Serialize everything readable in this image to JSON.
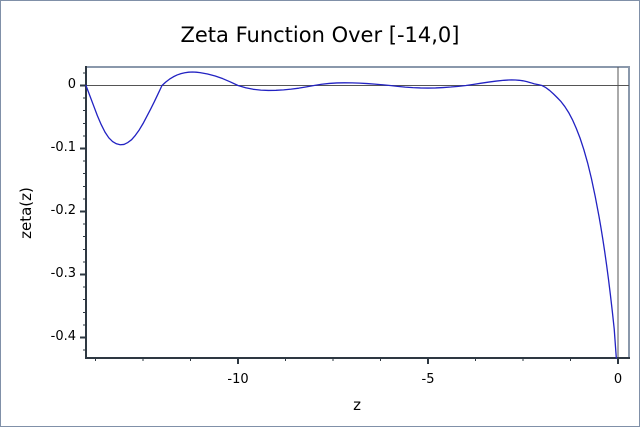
{
  "figure": {
    "border_color": "#8090a8",
    "background": "#ffffff"
  },
  "chart_data": {
    "type": "line",
    "title": "Zeta Function Over [-14,0]",
    "xlabel": "z",
    "ylabel": "zeta(z)",
    "x_range": [
      -14,
      0.289
    ],
    "y_range": [
      -0.4325,
      0.0294
    ],
    "grid": false,
    "legend": "none",
    "axis_cross_lines": {
      "horizontal_at_y": 0,
      "vertical_at_x": 0
    },
    "x_major_ticks": [
      {
        "value": -10,
        "label": "-10"
      },
      {
        "value": -5,
        "label": "-5"
      },
      {
        "value": 0,
        "label": "0"
      }
    ],
    "x_minor_ticks": [
      -13.75,
      -12.5,
      -11.25,
      -8.75,
      -7.5,
      -6.25,
      -3.75,
      -2.5,
      -1.25
    ],
    "y_major_ticks": [
      {
        "value": 0,
        "label": "0"
      },
      {
        "value": -0.1,
        "label": "-0.1"
      },
      {
        "value": -0.2,
        "label": "-0.2"
      },
      {
        "value": -0.3,
        "label": "-0.3"
      },
      {
        "value": -0.4,
        "label": "-0.4"
      }
    ],
    "y_minor_ticks": [
      0.02,
      -0.02,
      -0.04,
      -0.06,
      -0.08,
      -0.12,
      -0.14,
      -0.16,
      -0.18,
      -0.22,
      -0.24,
      -0.26,
      -0.28,
      -0.32,
      -0.34,
      -0.36,
      -0.38,
      -0.42
    ],
    "colors": {
      "curve": "#2222c2",
      "frame": "#8a98ab",
      "axis_spine": "#2e3842",
      "zero_line": "#555555",
      "text": "#000000"
    },
    "series": [
      {
        "name": "zeta(z)",
        "color": "#2222c2",
        "points": [
          [
            -14.0,
            0.0
          ],
          [
            -13.9,
            -0.016
          ],
          [
            -13.8,
            -0.032
          ],
          [
            -13.7,
            -0.048
          ],
          [
            -13.6,
            -0.062
          ],
          [
            -13.5,
            -0.074
          ],
          [
            -13.4,
            -0.083
          ],
          [
            -13.3,
            -0.089
          ],
          [
            -13.2,
            -0.0925
          ],
          [
            -13.1,
            -0.094
          ],
          [
            -13.0,
            -0.0935
          ],
          [
            -12.9,
            -0.0905
          ],
          [
            -12.8,
            -0.086
          ],
          [
            -12.7,
            -0.079
          ],
          [
            -12.6,
            -0.0705
          ],
          [
            -12.5,
            -0.0605
          ],
          [
            -12.4,
            -0.049
          ],
          [
            -12.3,
            -0.0375
          ],
          [
            -12.2,
            -0.0255
          ],
          [
            -12.1,
            -0.0128
          ],
          [
            -12.0,
            0.0
          ],
          [
            -11.9,
            0.0056
          ],
          [
            -11.8,
            0.0102
          ],
          [
            -11.7,
            0.0139
          ],
          [
            -11.6,
            0.0168
          ],
          [
            -11.5,
            0.0189
          ],
          [
            -11.4,
            0.0203
          ],
          [
            -11.3,
            0.0212
          ],
          [
            -11.2,
            0.0215
          ],
          [
            -11.1,
            0.0212
          ],
          [
            -11.0,
            0.0205
          ],
          [
            -10.8,
            0.0183
          ],
          [
            -10.6,
            0.0151
          ],
          [
            -10.4,
            0.0109
          ],
          [
            -10.2,
            0.0057
          ],
          [
            -10.0,
            0.0
          ],
          [
            -9.8,
            -0.0035
          ],
          [
            -9.6,
            -0.006
          ],
          [
            -9.4,
            -0.0073
          ],
          [
            -9.2,
            -0.0078
          ],
          [
            -9.0,
            -0.0076
          ],
          [
            -8.8,
            -0.0069
          ],
          [
            -8.6,
            -0.0057
          ],
          [
            -8.4,
            -0.0042
          ],
          [
            -8.2,
            -0.0022
          ],
          [
            -8.0,
            0.0
          ],
          [
            -7.8,
            0.002
          ],
          [
            -7.6,
            0.0033
          ],
          [
            -7.4,
            0.0041
          ],
          [
            -7.2,
            0.0043
          ],
          [
            -7.0,
            0.0042
          ],
          [
            -6.8,
            0.0038
          ],
          [
            -6.6,
            0.0031
          ],
          [
            -6.4,
            0.0022
          ],
          [
            -6.2,
            0.0012
          ],
          [
            -6.0,
            0.0
          ],
          [
            -5.8,
            -0.0013
          ],
          [
            -5.6,
            -0.0025
          ],
          [
            -5.4,
            -0.0033
          ],
          [
            -5.2,
            -0.0038
          ],
          [
            -5.0,
            -0.004
          ],
          [
            -4.8,
            -0.0038
          ],
          [
            -4.6,
            -0.0032
          ],
          [
            -4.4,
            -0.0024
          ],
          [
            -4.2,
            -0.0013
          ],
          [
            -4.0,
            0.0
          ],
          [
            -3.8,
            0.0018
          ],
          [
            -3.6,
            0.0037
          ],
          [
            -3.4,
            0.0055
          ],
          [
            -3.2,
            0.0071
          ],
          [
            -3.0,
            0.0083
          ],
          [
            -2.9,
            0.0087
          ],
          [
            -2.8,
            0.0089
          ],
          [
            -2.7,
            0.0088
          ],
          [
            -2.6,
            0.0083
          ],
          [
            -2.5,
            0.0075
          ],
          [
            -2.4,
            0.0062
          ],
          [
            -2.3,
            0.0045
          ],
          [
            -2.2,
            0.0026
          ],
          [
            -2.1,
            0.0014
          ],
          [
            -2.0,
            0.0
          ],
          [
            -1.9,
            -0.0033
          ],
          [
            -1.8,
            -0.0078
          ],
          [
            -1.7,
            -0.0133
          ],
          [
            -1.6,
            -0.0192
          ],
          [
            -1.5,
            -0.0255
          ],
          [
            -1.4,
            -0.0334
          ],
          [
            -1.3,
            -0.0428
          ],
          [
            -1.2,
            -0.0542
          ],
          [
            -1.1,
            -0.0678
          ],
          [
            -1.0,
            -0.0833
          ],
          [
            -0.9,
            -0.1016
          ],
          [
            -0.8,
            -0.1228
          ],
          [
            -0.7,
            -0.1476
          ],
          [
            -0.6,
            -0.1762
          ],
          [
            -0.5,
            -0.2079
          ],
          [
            -0.45,
            -0.2253
          ],
          [
            -0.4,
            -0.244
          ],
          [
            -0.35,
            -0.2639
          ],
          [
            -0.3,
            -0.2852
          ],
          [
            -0.25,
            -0.308
          ],
          [
            -0.2,
            -0.3325
          ],
          [
            -0.15,
            -0.3586
          ],
          [
            -0.1,
            -0.3865
          ],
          [
            -0.045,
            -0.4325
          ]
        ]
      }
    ]
  }
}
